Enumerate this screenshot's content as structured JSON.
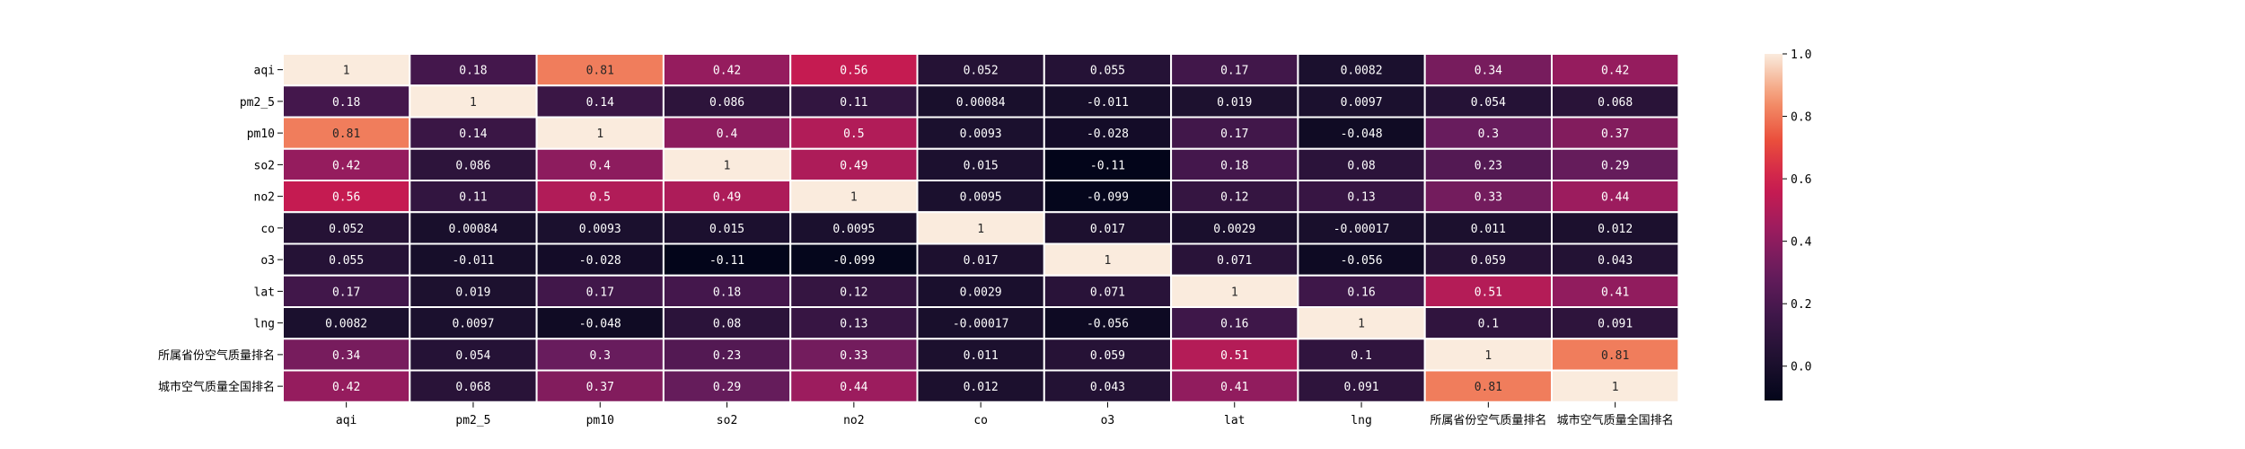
{
  "chart_data": {
    "type": "heatmap",
    "x_labels": [
      "aqi",
      "pm2_5",
      "pm10",
      "so2",
      "no2",
      "co",
      "o3",
      "lat",
      "lng",
      "所属省份空气质量排名",
      "城市空气质量全国排名"
    ],
    "y_labels": [
      "aqi",
      "pm2_5",
      "pm10",
      "so2",
      "no2",
      "co",
      "o3",
      "lat",
      "lng",
      "所属省份空气质量排名",
      "城市空气质量全国排名"
    ],
    "values": [
      [
        "1",
        "0.18",
        "0.81",
        "0.42",
        "0.56",
        "0.052",
        "0.055",
        "0.17",
        "0.0082",
        "0.34",
        "0.42"
      ],
      [
        "0.18",
        "1",
        "0.14",
        "0.086",
        "0.11",
        "0.00084",
        "-0.011",
        "0.019",
        "0.0097",
        "0.054",
        "0.068"
      ],
      [
        "0.81",
        "0.14",
        "1",
        "0.4",
        "0.5",
        "0.0093",
        "-0.028",
        "0.17",
        "-0.048",
        "0.3",
        "0.37"
      ],
      [
        "0.42",
        "0.086",
        "0.4",
        "1",
        "0.49",
        "0.015",
        "-0.11",
        "0.18",
        "0.08",
        "0.23",
        "0.29"
      ],
      [
        "0.56",
        "0.11",
        "0.5",
        "0.49",
        "1",
        "0.0095",
        "-0.099",
        "0.12",
        "0.13",
        "0.33",
        "0.44"
      ],
      [
        "0.052",
        "0.00084",
        "0.0093",
        "0.015",
        "0.0095",
        "1",
        "0.017",
        "0.0029",
        "-0.00017",
        "0.011",
        "0.012"
      ],
      [
        "0.055",
        "-0.011",
        "-0.028",
        "-0.11",
        "-0.099",
        "0.017",
        "1",
        "0.071",
        "-0.056",
        "0.059",
        "0.043"
      ],
      [
        "0.17",
        "0.019",
        "0.17",
        "0.18",
        "0.12",
        "0.0029",
        "0.071",
        "1",
        "0.16",
        "0.51",
        "0.41"
      ],
      [
        "0.0082",
        "0.0097",
        "-0.048",
        "0.08",
        "0.13",
        "-0.00017",
        "-0.056",
        "0.16",
        "1",
        "0.1",
        "0.091"
      ],
      [
        "0.34",
        "0.054",
        "0.3",
        "0.23",
        "0.33",
        "0.011",
        "0.059",
        "0.51",
        "0.1",
        "1",
        "0.81"
      ],
      [
        "0.42",
        "0.068",
        "0.37",
        "0.29",
        "0.44",
        "0.012",
        "0.043",
        "0.41",
        "0.091",
        "0.81",
        "1"
      ]
    ],
    "colorbar": {
      "vmin": -0.11,
      "vmax": 1.0,
      "ticks": [
        "0.0",
        "0.2",
        "0.4",
        "0.6",
        "0.8",
        "1.0"
      ],
      "colormap": "rocket"
    }
  }
}
